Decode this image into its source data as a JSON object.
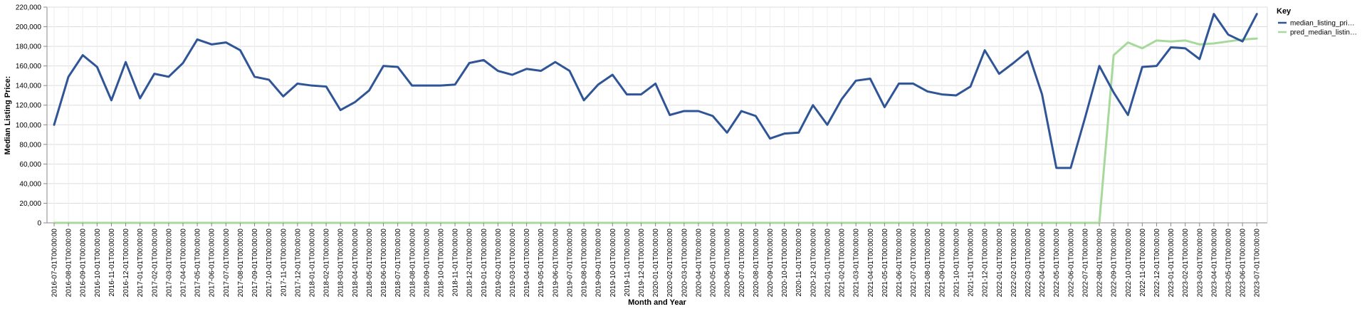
{
  "chart_data": {
    "type": "line",
    "xlabel": "Month and Year",
    "ylabel": "Median Listing Price:",
    "ylim": [
      0,
      220000
    ],
    "yticks": [
      0,
      20000,
      40000,
      60000,
      80000,
      100000,
      120000,
      140000,
      160000,
      180000,
      200000,
      220000
    ],
    "ytick_labels": [
      "0",
      "20,000",
      "40,000",
      "60,000",
      "80,000",
      "100,000",
      "120,000",
      "140,000",
      "160,000",
      "180,000",
      "200,000",
      "220,000"
    ],
    "grid": true,
    "legend": {
      "title": "Key",
      "position": "right",
      "entries": [
        {
          "label": "median_listing_pri…",
          "color": "#2f5597"
        },
        {
          "label": "pred_median_listin…",
          "color": "#a6d99b"
        }
      ]
    },
    "categories": [
      "2016-07-01T00:00:00",
      "2016-08-01T00:00:00",
      "2016-09-01T00:00:00",
      "2016-10-01T00:00:00",
      "2016-11-01T00:00:00",
      "2016-12-01T00:00:00",
      "2017-01-01T00:00:00",
      "2017-02-01T00:00:00",
      "2017-03-01T00:00:00",
      "2017-04-01T00:00:00",
      "2017-05-01T00:00:00",
      "2017-06-01T00:00:00",
      "2017-07-01T00:00:00",
      "2017-08-01T00:00:00",
      "2017-09-01T00:00:00",
      "2017-10-01T00:00:00",
      "2017-11-01T00:00:00",
      "2017-12-01T00:00:00",
      "2018-01-01T00:00:00",
      "2018-02-01T00:00:00",
      "2018-03-01T00:00:00",
      "2018-04-01T00:00:00",
      "2018-05-01T00:00:00",
      "2018-06-01T00:00:00",
      "2018-07-01T00:00:00",
      "2018-08-01T00:00:00",
      "2018-09-01T00:00:00",
      "2018-10-01T00:00:00",
      "2018-11-01T00:00:00",
      "2018-12-01T00:00:00",
      "2019-01-01T00:00:00",
      "2019-02-01T00:00:00",
      "2019-03-01T00:00:00",
      "2019-04-01T00:00:00",
      "2019-05-01T00:00:00",
      "2019-06-01T00:00:00",
      "2019-07-01T00:00:00",
      "2019-08-01T00:00:00",
      "2019-09-01T00:00:00",
      "2019-10-01T00:00:00",
      "2019-11-01T00:00:00",
      "2019-12-01T00:00:00",
      "2020-01-01T00:00:00",
      "2020-02-01T00:00:00",
      "2020-03-01T00:00:00",
      "2020-04-01T00:00:00",
      "2020-05-01T00:00:00",
      "2020-06-01T00:00:00",
      "2020-07-01T00:00:00",
      "2020-08-01T00:00:00",
      "2020-09-01T00:00:00",
      "2020-10-01T00:00:00",
      "2020-11-01T00:00:00",
      "2020-12-01T00:00:00",
      "2021-01-01T00:00:00",
      "2021-02-01T00:00:00",
      "2021-03-01T00:00:00",
      "2021-04-01T00:00:00",
      "2021-05-01T00:00:00",
      "2021-06-01T00:00:00",
      "2021-07-01T00:00:00",
      "2021-08-01T00:00:00",
      "2021-09-01T00:00:00",
      "2021-10-01T00:00:00",
      "2021-11-01T00:00:00",
      "2021-12-01T00:00:00",
      "2022-01-01T00:00:00",
      "2022-02-01T00:00:00",
      "2022-03-01T00:00:00",
      "2022-04-01T00:00:00",
      "2022-05-01T00:00:00",
      "2022-06-01T00:00:00",
      "2022-07-01T00:00:00",
      "2022-08-01T00:00:00",
      "2022-09-01T00:00:00",
      "2022-10-01T00:00:00",
      "2022-11-01T00:00:00",
      "2022-12-01T00:00:00",
      "2023-01-01T00:00:00",
      "2023-02-01T00:00:00",
      "2023-03-01T00:00:00",
      "2023-04-01T00:00:00",
      "2023-05-01T00:00:00",
      "2023-06-01T00:00:00",
      "2023-07-01T00:00:00"
    ],
    "series": [
      {
        "name": "median_listing_pri…",
        "color": "#2f5597",
        "values": [
          100000,
          149000,
          171000,
          159000,
          125000,
          164000,
          127000,
          152000,
          149000,
          163000,
          187000,
          182000,
          184000,
          176000,
          149000,
          146000,
          129000,
          142000,
          140000,
          139000,
          115000,
          123000,
          135000,
          160000,
          159000,
          140000,
          140000,
          140000,
          141000,
          163000,
          166000,
          155000,
          151000,
          157000,
          155000,
          164000,
          155000,
          125000,
          141000,
          151000,
          131000,
          131000,
          142000,
          110000,
          114000,
          114000,
          109000,
          92000,
          114000,
          109000,
          86000,
          91000,
          92000,
          120000,
          100000,
          126000,
          145000,
          147000,
          118000,
          142000,
          142000,
          134000,
          131000,
          130000,
          139000,
          176000,
          152000,
          163000,
          175000,
          131000,
          56000,
          56000,
          107000,
          160000,
          133000,
          110000,
          159000,
          160000,
          179000,
          178000,
          167000,
          213000,
          192000,
          185000,
          213000
        ]
      },
      {
        "name": "pred_median_listin…",
        "color": "#a6d99b",
        "values": [
          0,
          0,
          0,
          0,
          0,
          0,
          0,
          0,
          0,
          0,
          0,
          0,
          0,
          0,
          0,
          0,
          0,
          0,
          0,
          0,
          0,
          0,
          0,
          0,
          0,
          0,
          0,
          0,
          0,
          0,
          0,
          0,
          0,
          0,
          0,
          0,
          0,
          0,
          0,
          0,
          0,
          0,
          0,
          0,
          0,
          0,
          0,
          0,
          0,
          0,
          0,
          0,
          0,
          0,
          0,
          0,
          0,
          0,
          0,
          0,
          0,
          0,
          0,
          0,
          0,
          0,
          0,
          0,
          0,
          0,
          0,
          0,
          0,
          0,
          171000,
          184000,
          178000,
          186000,
          185000,
          186000,
          182000,
          183000,
          185000,
          187000,
          188000
        ]
      }
    ]
  }
}
